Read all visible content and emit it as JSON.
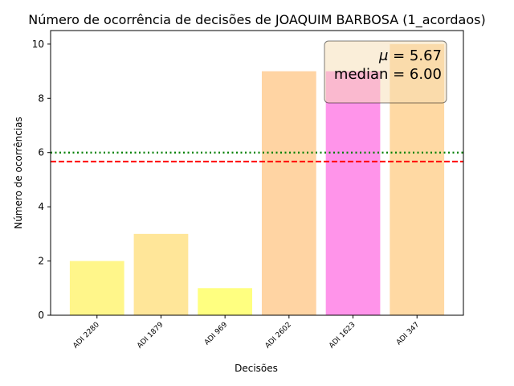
{
  "chart_data": {
    "type": "bar",
    "title": "Número de ocorrência de decisões de JOAQUIM BARBOSA (1_acordaos)",
    "xlabel": "Decisões",
    "ylabel": "Número de ocorrências",
    "categories": [
      "ADI 2280",
      "ADI 1879",
      "ADI 969",
      "ADI 2602",
      "ADI 1623",
      "ADI 347"
    ],
    "values": [
      2,
      3,
      1,
      9,
      9,
      10
    ],
    "bar_colors": [
      "#fff68a",
      "#ffe699",
      "#ffff80",
      "#ffd4a3",
      "#ff94ea",
      "#ffd9a3"
    ],
    "ylim": [
      0,
      10.5
    ],
    "yticks": [
      0,
      2,
      4,
      6,
      8,
      10
    ],
    "grid": false,
    "reference_lines": [
      {
        "name": "mean",
        "value": 5.67,
        "color": "#ff0000",
        "style": "dashed"
      },
      {
        "name": "median",
        "value": 6.0,
        "color": "#008000",
        "style": "dotted"
      }
    ],
    "stats_box": {
      "mean_symbol": "μ",
      "mean_text": "5.67",
      "median_label": "median",
      "median_text": "6.00",
      "placement": "top-right"
    }
  }
}
